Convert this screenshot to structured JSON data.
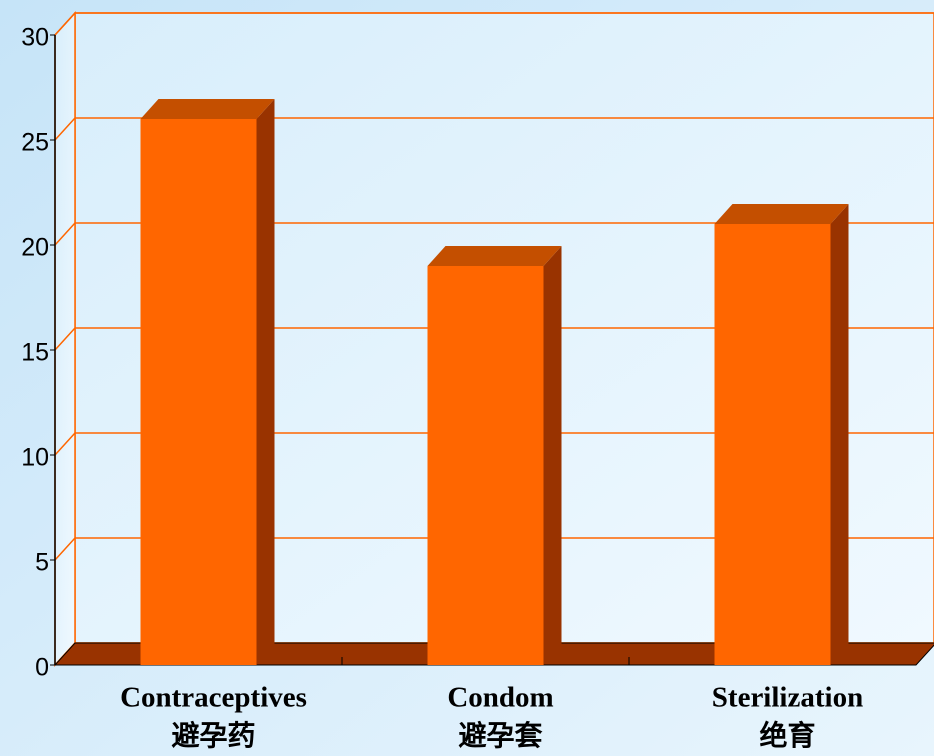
{
  "chart_data": {
    "type": "bar3d",
    "categories": [
      [
        "Contraceptives",
        "避孕药"
      ],
      [
        "Condom",
        "避孕套"
      ],
      [
        "Sterilization",
        "绝育"
      ]
    ],
    "values": [
      26,
      19,
      21
    ],
    "color": "#ff6600",
    "side_color": "#993300",
    "top_color": "#c44f00",
    "grid_color": "#ff6600",
    "ylim": [
      0,
      30
    ],
    "yticks": [
      0,
      5,
      10,
      15,
      20,
      25,
      30
    ],
    "grid": true
  }
}
